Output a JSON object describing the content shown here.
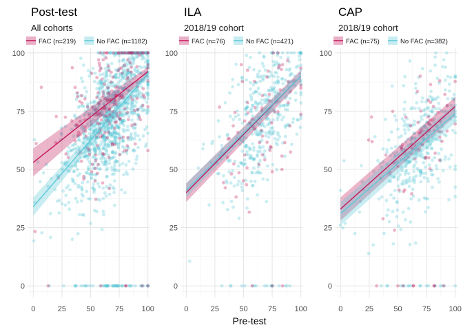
{
  "colors": {
    "fac": "#c2185b",
    "nofac": "#5bc8d8"
  },
  "figure": {
    "xlabel": "Pre-test"
  },
  "chart_data": [
    {
      "type": "scatter",
      "title": "Post-test",
      "subtitle": "All cohorts",
      "xlim": [
        -5,
        102
      ],
      "ylim": [
        -5,
        102
      ],
      "xticks": [
        0,
        25,
        50,
        75,
        100
      ],
      "yticks": [
        0,
        25,
        50,
        75,
        100
      ],
      "grid": true,
      "legend_position": "top",
      "series": [
        {
          "name": "FAC (n=219)",
          "key": "fac",
          "fit": [
            53,
            92
          ],
          "band": [
            6,
            2
          ],
          "n": 219
        },
        {
          "name": "No FAC (n=1182)",
          "key": "nofac",
          "fit": [
            34,
            91
          ],
          "band": [
            4,
            1.2
          ],
          "n": 1182
        }
      ]
    },
    {
      "type": "scatter",
      "title": "ILA",
      "subtitle": "2018/19 cohort",
      "xlim": [
        -5,
        102
      ],
      "ylim": [
        -5,
        102
      ],
      "xticks": [
        0,
        25,
        50,
        75,
        100
      ],
      "yticks": [
        0,
        25,
        50,
        75,
        100
      ],
      "grid": true,
      "legend_position": "top",
      "series": [
        {
          "name": "FAC (n=76)",
          "key": "fac",
          "fit": [
            40,
            90
          ],
          "band": [
            4,
            2.5
          ],
          "n": 76
        },
        {
          "name": "No FAC (n=421)",
          "key": "nofac",
          "fit": [
            41,
            90
          ],
          "band": [
            3,
            2
          ],
          "n": 421
        }
      ]
    },
    {
      "type": "scatter",
      "title": "CAP",
      "subtitle": "2018/19 cohort",
      "xlim": [
        -5,
        102
      ],
      "ylim": [
        -5,
        102
      ],
      "xticks": [
        0,
        25,
        50,
        75,
        100
      ],
      "yticks": [
        0,
        25,
        50,
        75,
        100
      ],
      "grid": true,
      "legend_position": "top",
      "series": [
        {
          "name": "FAC (n=75)",
          "key": "fac",
          "fit": [
            33,
            77
          ],
          "band": [
            5,
            4
          ],
          "n": 75
        },
        {
          "name": "No FAC (n=382)",
          "key": "nofac",
          "fit": [
            31,
            74
          ],
          "band": [
            5,
            4
          ],
          "n": 382
        }
      ]
    }
  ]
}
